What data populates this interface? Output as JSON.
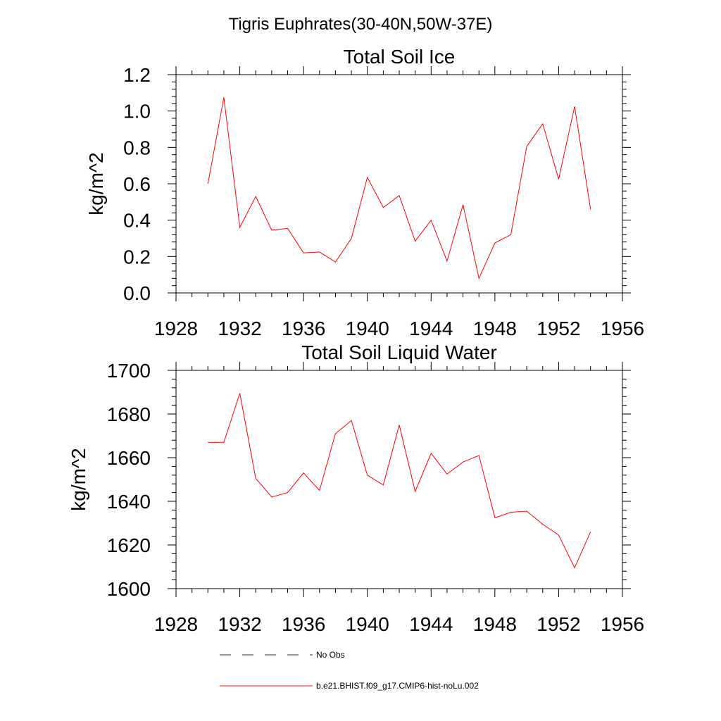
{
  "figure_title": "Tigris Euphrates(30-40N,50W-37E)",
  "legend": {
    "entries": [
      {
        "label": "No Obs",
        "style": "dashed",
        "color": "#202060"
      },
      {
        "label": "b.e21.BHIST.f09_g17.CMIP6-hist-noLu.002",
        "style": "solid",
        "color": "#ff0000"
      }
    ]
  },
  "chart_data": [
    {
      "type": "line",
      "title": "Total Soil Ice",
      "xlabel": "",
      "ylabel": "kg/m^2",
      "xlim": [
        1928,
        1956
      ],
      "ylim": [
        0.0,
        1.2
      ],
      "xticks": [
        "1928",
        "1932",
        "1936",
        "1940",
        "1944",
        "1948",
        "1952",
        "1956"
      ],
      "yticks": [
        "0.0",
        "0.2",
        "0.4",
        "0.6",
        "0.8",
        "1.0",
        "1.2"
      ],
      "grid": false,
      "series": [
        {
          "name": "b.e21.BHIST.f09_g17.CMIP6-hist-noLu.002",
          "color": "#ff0000",
          "x": [
            1930,
            1931,
            1932,
            1933,
            1934,
            1935,
            1936,
            1937,
            1938,
            1939,
            1940,
            1941,
            1942,
            1943,
            1944,
            1945,
            1946,
            1947,
            1948,
            1949,
            1950,
            1951,
            1952,
            1953,
            1954
          ],
          "values": [
            0.6,
            1.075,
            0.36,
            0.53,
            0.345,
            0.355,
            0.22,
            0.225,
            0.17,
            0.3,
            0.635,
            0.47,
            0.535,
            0.285,
            0.4,
            0.175,
            0.485,
            0.08,
            0.275,
            0.32,
            0.805,
            0.93,
            0.625,
            1.025,
            0.46
          ]
        }
      ]
    },
    {
      "type": "line",
      "title": "Total Soil Liquid Water",
      "xlabel": "",
      "ylabel": "kg/m^2",
      "xlim": [
        1928,
        1956
      ],
      "ylim": [
        1600,
        1700
      ],
      "xticks": [
        "1928",
        "1932",
        "1936",
        "1940",
        "1944",
        "1948",
        "1952",
        "1956"
      ],
      "yticks": [
        "1600",
        "1620",
        "1640",
        "1660",
        "1680",
        "1700"
      ],
      "grid": false,
      "series": [
        {
          "name": "b.e21.BHIST.f09_g17.CMIP6-hist-noLu.002",
          "color": "#ff0000",
          "x": [
            1930,
            1931,
            1932,
            1933,
            1934,
            1935,
            1936,
            1937,
            1938,
            1939,
            1940,
            1941,
            1942,
            1943,
            1944,
            1945,
            1946,
            1947,
            1948,
            1949,
            1950,
            1951,
            1952,
            1953,
            1954
          ],
          "values": [
            1667,
            1667,
            1689.5,
            1650.5,
            1642,
            1644,
            1653,
            1645,
            1671,
            1677,
            1652,
            1647.5,
            1675,
            1644.5,
            1662,
            1652.5,
            1658,
            1661,
            1632.5,
            1635,
            1635.5,
            1629.5,
            1624.5,
            1609.5,
            1626
          ]
        }
      ]
    }
  ]
}
